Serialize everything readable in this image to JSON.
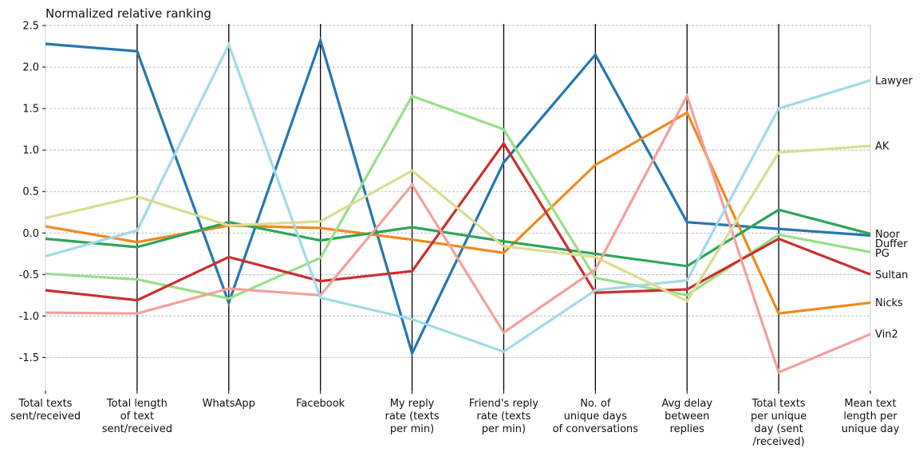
{
  "chart_data": {
    "type": "line",
    "title": "Normalized relative ranking",
    "categories": [
      [
        "Total texts",
        "sent/received"
      ],
      [
        "Total length",
        "of text",
        "sent/received"
      ],
      [
        "WhatsApp"
      ],
      [
        "Facebook"
      ],
      [
        "My reply",
        "rate (texts",
        "per min)"
      ],
      [
        "Friend's reply",
        "rate (texts",
        "per min)"
      ],
      [
        "No. of",
        "unique days",
        "of conversations"
      ],
      [
        "Avg delay",
        "between",
        "replies"
      ],
      [
        "Total texts",
        "per unique",
        "day (sent",
        "/received)"
      ],
      [
        "Mean text",
        "length per",
        "unique day"
      ]
    ],
    "ylim": [
      -1.9,
      2.52
    ],
    "yticks": [
      -1.5,
      -1.0,
      -0.5,
      0.0,
      0.5,
      1.0,
      1.5,
      2.0,
      2.5
    ],
    "grid": true,
    "legend": "line-end labels on right",
    "series": [
      {
        "name": "Duffer",
        "color": "#2676b0",
        "values": [
          2.28,
          2.19,
          -0.84,
          2.32,
          -1.45,
          0.85,
          2.15,
          0.13,
          0.05,
          -0.03
        ]
      },
      {
        "name": "Nicks",
        "color": "#f18a1c",
        "values": [
          0.08,
          -0.11,
          0.09,
          0.06,
          -0.08,
          -0.24,
          0.82,
          1.45,
          -0.97,
          -0.84
        ]
      },
      {
        "name": "Noor",
        "color": "#2ca55a",
        "values": [
          -0.07,
          -0.17,
          0.13,
          -0.09,
          0.07,
          -0.1,
          -0.25,
          -0.4,
          0.28,
          -0.01
        ]
      },
      {
        "name": "PG",
        "color": "#98df88",
        "values": [
          -0.49,
          -0.56,
          -0.79,
          -0.3,
          1.65,
          1.25,
          -0.54,
          -0.75,
          -0.02,
          -0.23
        ]
      },
      {
        "name": "Sultan",
        "color": "#cc2f2f",
        "values": [
          -0.69,
          -0.81,
          -0.29,
          -0.58,
          -0.46,
          1.08,
          -0.72,
          -0.68,
          -0.07,
          -0.5
        ]
      },
      {
        "name": "Vin2",
        "color": "#f4a09a",
        "values": [
          -0.96,
          -0.97,
          -0.67,
          -0.75,
          0.58,
          -1.2,
          -0.44,
          1.65,
          -1.68,
          -1.22
        ]
      },
      {
        "name": "Lawyer",
        "color": "#a3dae6",
        "values": [
          -0.28,
          0.03,
          2.27,
          -0.78,
          -1.04,
          -1.43,
          -0.69,
          -0.57,
          1.5,
          1.84
        ]
      },
      {
        "name": "AK",
        "color": "#dcdc92",
        "values": [
          0.18,
          0.44,
          0.09,
          0.14,
          0.75,
          -0.16,
          -0.29,
          -0.82,
          0.97,
          1.05
        ]
      }
    ]
  }
}
